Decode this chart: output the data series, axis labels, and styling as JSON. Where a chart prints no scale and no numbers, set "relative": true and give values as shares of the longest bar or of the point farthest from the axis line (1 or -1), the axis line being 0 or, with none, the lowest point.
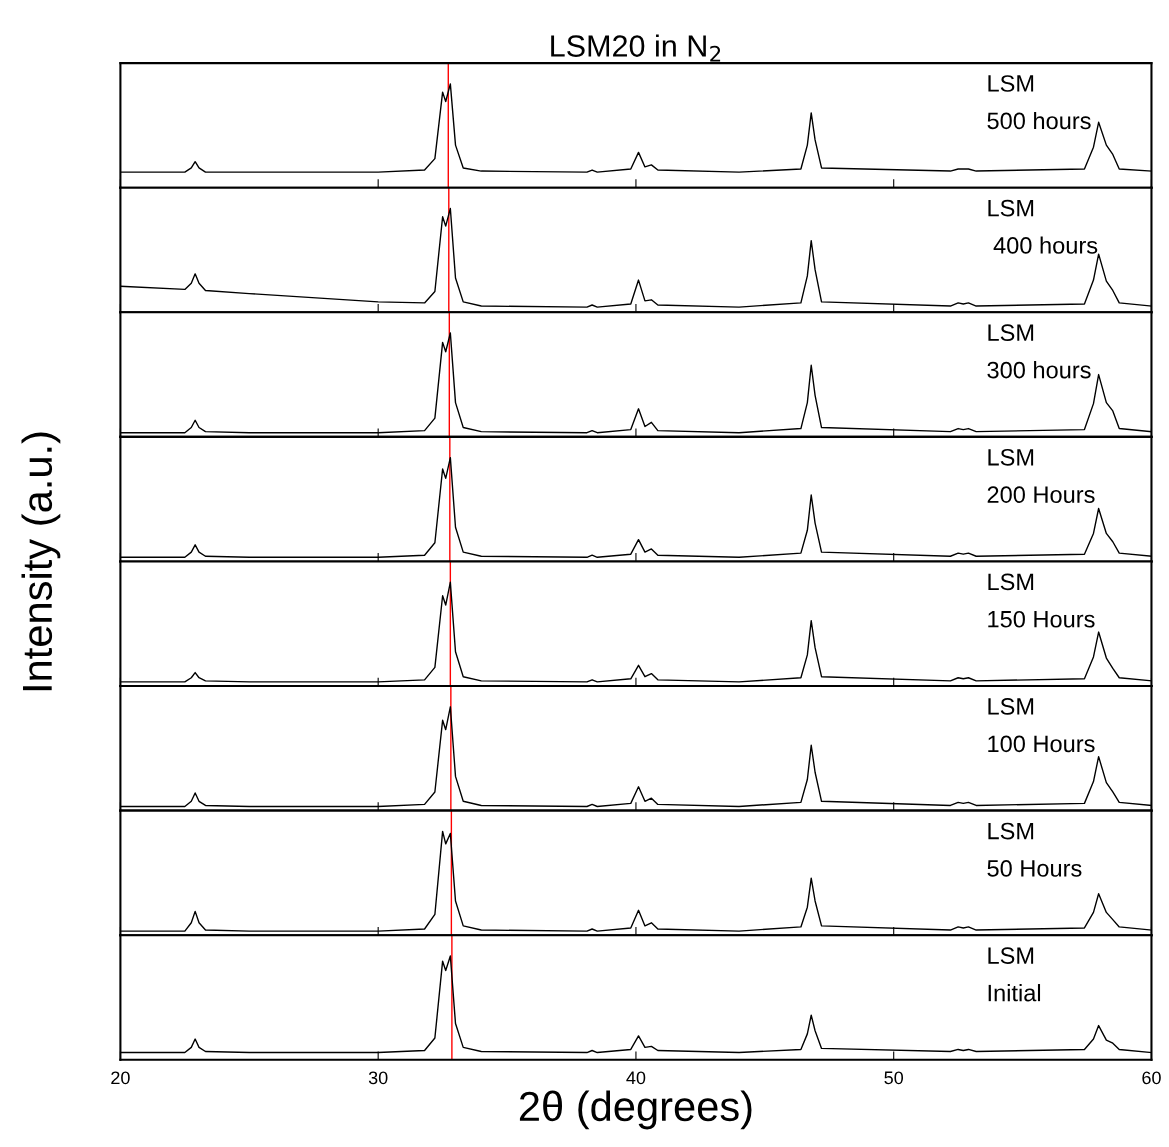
{
  "chart_data": [
    {
      "type": "line",
      "relative": true,
      "title": "LSM20 in N$_{2}$",
      "annotations": [
        "LSM",
        "500 hours"
      ],
      "xlim": [
        20,
        60
      ],
      "xticks": [
        20,
        30,
        40,
        50,
        60
      ],
      "tick_labels": false,
      "grid": false,
      "ref_lines": [
        {
          "axis": "x",
          "value": 32.72,
          "color": "#ff0000"
        }
      ],
      "x": [
        20,
        22.5,
        22.75,
        22.9,
        23.05,
        23.3,
        25,
        30,
        31.8,
        32.2,
        32.5,
        32.62,
        32.8,
        33.0,
        33.3,
        34,
        38.1,
        38.3,
        38.5,
        39.8,
        40.1,
        40.35,
        40.6,
        40.85,
        44,
        46.4,
        46.65,
        46.8,
        46.95,
        47.2,
        52.2,
        52.5,
        52.7,
        52.9,
        53.2,
        57.4,
        57.75,
        57.95,
        58.25,
        58.5,
        58.75,
        60
      ],
      "series": [
        {
          "color": "#000000",
          "values": [
            0.15,
            0.15,
            0.19,
            0.25,
            0.19,
            0.15,
            0.15,
            0.15,
            0.17,
            0.28,
            0.92,
            0.83,
            1,
            0.41,
            0.19,
            0.16,
            0.15,
            0.17,
            0.15,
            0.18,
            0.34,
            0.2,
            0.22,
            0.17,
            0.15,
            0.18,
            0.41,
            0.72,
            0.46,
            0.19,
            0.16,
            0.18,
            0.18,
            0.18,
            0.16,
            0.18,
            0.39,
            0.63,
            0.41,
            0.32,
            0.18,
            0.16
          ]
        }
      ]
    },
    {
      "type": "line",
      "relative": true,
      "annotations": [
        "LSM",
        " 400 hours"
      ],
      "xlim": [
        20,
        60
      ],
      "xticks": [
        20,
        30,
        40,
        50,
        60
      ],
      "tick_labels": false,
      "grid": false,
      "ref_lines": [
        {
          "axis": "x",
          "value": 32.74,
          "color": "#ff0000"
        }
      ],
      "x": [
        20,
        22.5,
        22.75,
        22.9,
        23.05,
        23.3,
        25,
        30,
        31.8,
        32.2,
        32.5,
        32.62,
        32.8,
        33.0,
        33.3,
        34,
        38.1,
        38.3,
        38.5,
        39.8,
        40.1,
        40.35,
        40.6,
        40.85,
        44,
        46.4,
        46.65,
        46.8,
        46.95,
        47.2,
        52.2,
        52.5,
        52.7,
        52.9,
        53.2,
        57.4,
        57.75,
        57.95,
        58.25,
        58.5,
        58.75,
        60
      ],
      "series": [
        {
          "color": "#000000",
          "values": [
            0.25,
            0.22,
            0.28,
            0.37,
            0.28,
            0.21,
            0.18,
            0.1,
            0.09,
            0.2,
            0.92,
            0.83,
            1,
            0.33,
            0.1,
            0.06,
            0.05,
            0.07,
            0.05,
            0.08,
            0.31,
            0.11,
            0.12,
            0.07,
            0.05,
            0.09,
            0.35,
            0.69,
            0.41,
            0.1,
            0.06,
            0.09,
            0.08,
            0.09,
            0.06,
            0.08,
            0.31,
            0.56,
            0.3,
            0.21,
            0.09,
            0.06
          ]
        }
      ]
    },
    {
      "type": "line",
      "relative": true,
      "annotations": [
        "LSM",
        "300 hours"
      ],
      "xlim": [
        20,
        60
      ],
      "xticks": [
        20,
        30,
        40,
        50,
        60
      ],
      "tick_labels": false,
      "grid": false,
      "ref_lines": [
        {
          "axis": "x",
          "value": 32.76,
          "color": "#ff0000"
        }
      ],
      "x": [
        20,
        22.5,
        22.75,
        22.9,
        23.05,
        23.3,
        25,
        30,
        31.8,
        32.2,
        32.5,
        32.62,
        32.8,
        33.0,
        33.3,
        34,
        38.1,
        38.3,
        38.5,
        39.8,
        40.1,
        40.35,
        40.6,
        40.85,
        44,
        46.4,
        46.65,
        46.8,
        46.95,
        47.2,
        52.2,
        52.5,
        52.7,
        52.9,
        53.2,
        57.4,
        57.75,
        57.95,
        58.25,
        58.5,
        58.75,
        60
      ],
      "series": [
        {
          "color": "#000000",
          "values": [
            0.04,
            0.04,
            0.09,
            0.16,
            0.09,
            0.05,
            0.04,
            0.04,
            0.06,
            0.18,
            0.91,
            0.82,
            1,
            0.33,
            0.09,
            0.05,
            0.04,
            0.06,
            0.04,
            0.07,
            0.27,
            0.1,
            0.14,
            0.06,
            0.04,
            0.08,
            0.33,
            0.69,
            0.4,
            0.09,
            0.05,
            0.08,
            0.07,
            0.08,
            0.05,
            0.07,
            0.32,
            0.6,
            0.33,
            0.25,
            0.08,
            0.05
          ]
        }
      ]
    },
    {
      "type": "line",
      "relative": true,
      "annotations": [
        "LSM",
        "200 Hours"
      ],
      "xlim": [
        20,
        60
      ],
      "xticks": [
        20,
        30,
        40,
        50,
        60
      ],
      "tick_labels": false,
      "grid": false,
      "ref_lines": [
        {
          "axis": "x",
          "value": 32.78,
          "color": "#ff0000"
        }
      ],
      "x": [
        20,
        22.5,
        22.75,
        22.9,
        23.05,
        23.3,
        25,
        30,
        31.8,
        32.2,
        32.5,
        32.62,
        32.8,
        33.0,
        33.3,
        34,
        38.1,
        38.3,
        38.5,
        39.8,
        40.1,
        40.35,
        40.6,
        40.85,
        44,
        46.4,
        46.65,
        46.8,
        46.95,
        47.2,
        52.2,
        52.5,
        52.7,
        52.9,
        53.2,
        57.4,
        57.75,
        57.95,
        58.25,
        58.5,
        58.75,
        60
      ],
      "series": [
        {
          "color": "#000000",
          "values": [
            0.04,
            0.04,
            0.09,
            0.16,
            0.09,
            0.05,
            0.04,
            0.04,
            0.06,
            0.18,
            0.89,
            0.8,
            1,
            0.33,
            0.09,
            0.05,
            0.04,
            0.06,
            0.04,
            0.07,
            0.21,
            0.09,
            0.12,
            0.06,
            0.04,
            0.08,
            0.3,
            0.64,
            0.37,
            0.09,
            0.05,
            0.08,
            0.07,
            0.08,
            0.05,
            0.07,
            0.27,
            0.51,
            0.27,
            0.19,
            0.08,
            0.05
          ]
        }
      ]
    },
    {
      "type": "line",
      "relative": true,
      "ylabel": "Intensity (a.u.)",
      "annotations": [
        "LSM",
        "150 Hours"
      ],
      "xlim": [
        20,
        60
      ],
      "xticks": [
        20,
        30,
        40,
        50,
        60
      ],
      "tick_labels": false,
      "grid": false,
      "ref_lines": [
        {
          "axis": "x",
          "value": 32.8,
          "color": "#ff0000"
        }
      ],
      "x": [
        20,
        22.5,
        22.75,
        22.9,
        23.05,
        23.3,
        25,
        30,
        31.8,
        32.2,
        32.5,
        32.62,
        32.8,
        33.0,
        33.3,
        34,
        38.1,
        38.3,
        38.5,
        39.8,
        40.1,
        40.35,
        40.6,
        40.85,
        44,
        46.4,
        46.65,
        46.8,
        46.95,
        47.2,
        52.2,
        52.5,
        52.7,
        52.9,
        53.2,
        57.4,
        57.75,
        57.95,
        58.25,
        58.5,
        58.75,
        60
      ],
      "series": [
        {
          "color": "#000000",
          "values": [
            0.04,
            0.04,
            0.08,
            0.13,
            0.08,
            0.05,
            0.04,
            0.04,
            0.06,
            0.18,
            0.87,
            0.78,
            1,
            0.33,
            0.09,
            0.05,
            0.04,
            0.06,
            0.04,
            0.07,
            0.2,
            0.09,
            0.12,
            0.06,
            0.04,
            0.08,
            0.3,
            0.63,
            0.37,
            0.09,
            0.05,
            0.08,
            0.07,
            0.08,
            0.05,
            0.07,
            0.28,
            0.52,
            0.27,
            0.17,
            0.08,
            0.05
          ]
        }
      ]
    },
    {
      "type": "line",
      "relative": true,
      "annotations": [
        "LSM",
        "100 Hours"
      ],
      "xlim": [
        20,
        60
      ],
      "xticks": [
        20,
        30,
        40,
        50,
        60
      ],
      "tick_labels": false,
      "grid": false,
      "ref_lines": [
        {
          "axis": "x",
          "value": 32.82,
          "color": "#ff0000"
        }
      ],
      "x": [
        20,
        22.5,
        22.75,
        22.9,
        23.05,
        23.3,
        25,
        30,
        31.8,
        32.2,
        32.5,
        32.62,
        32.8,
        33.0,
        33.3,
        34,
        38.1,
        38.3,
        38.5,
        39.8,
        40.1,
        40.35,
        40.6,
        40.85,
        44,
        46.4,
        46.65,
        46.8,
        46.95,
        47.2,
        52.2,
        52.5,
        52.7,
        52.9,
        53.2,
        57.4,
        57.75,
        57.95,
        58.25,
        58.5,
        58.75,
        60
      ],
      "series": [
        {
          "color": "#000000",
          "values": [
            0.04,
            0.04,
            0.09,
            0.17,
            0.09,
            0.05,
            0.04,
            0.04,
            0.06,
            0.18,
            0.87,
            0.78,
            1,
            0.33,
            0.09,
            0.05,
            0.04,
            0.06,
            0.04,
            0.07,
            0.23,
            0.09,
            0.12,
            0.06,
            0.04,
            0.08,
            0.3,
            0.63,
            0.37,
            0.09,
            0.05,
            0.08,
            0.07,
            0.08,
            0.05,
            0.07,
            0.28,
            0.52,
            0.27,
            0.18,
            0.08,
            0.05
          ]
        }
      ]
    },
    {
      "type": "line",
      "relative": true,
      "annotations": [
        "LSM",
        "50 Hours"
      ],
      "xlim": [
        20,
        60
      ],
      "xticks": [
        20,
        30,
        40,
        50,
        60
      ],
      "tick_labels": false,
      "grid": false,
      "ref_lines": [
        {
          "axis": "x",
          "value": 32.84,
          "color": "#ff0000"
        }
      ],
      "x": [
        20,
        22.5,
        22.75,
        22.9,
        23.05,
        23.3,
        25,
        30,
        31.8,
        32.2,
        32.5,
        32.62,
        32.8,
        33.0,
        33.3,
        34,
        38.1,
        38.3,
        38.5,
        39.8,
        40.1,
        40.35,
        40.6,
        40.85,
        44,
        46.4,
        46.65,
        46.8,
        46.95,
        47.2,
        52.2,
        52.5,
        52.7,
        52.9,
        53.2,
        57.4,
        57.75,
        57.95,
        58.25,
        58.5,
        58.75,
        60
      ],
      "series": [
        {
          "color": "#000000",
          "values": [
            0.04,
            0.04,
            0.12,
            0.23,
            0.12,
            0.05,
            0.04,
            0.04,
            0.06,
            0.2,
            1,
            0.88,
            0.98,
            0.33,
            0.09,
            0.05,
            0.04,
            0.06,
            0.04,
            0.07,
            0.24,
            0.09,
            0.12,
            0.06,
            0.04,
            0.08,
            0.27,
            0.55,
            0.33,
            0.09,
            0.05,
            0.08,
            0.07,
            0.08,
            0.05,
            0.07,
            0.22,
            0.4,
            0.22,
            0.15,
            0.08,
            0.05
          ]
        }
      ]
    },
    {
      "type": "line",
      "relative": true,
      "xlabel": "2θ (degrees)",
      "annotations": [
        "LSM",
        "Initial"
      ],
      "xlim": [
        20,
        60
      ],
      "xticks": [
        20,
        30,
        40,
        50,
        60
      ],
      "tick_labels": "x",
      "grid": false,
      "ref_lines": [
        {
          "axis": "x",
          "value": 32.86,
          "color": "#ff0000"
        }
      ],
      "x": [
        20,
        22.5,
        22.75,
        22.9,
        23.05,
        23.3,
        25,
        30,
        31.8,
        32.2,
        32.5,
        32.62,
        32.8,
        33.0,
        33.3,
        34,
        38.1,
        38.3,
        38.5,
        39.8,
        40.1,
        40.35,
        40.6,
        40.85,
        44,
        46.4,
        46.65,
        46.8,
        46.95,
        47.2,
        52.2,
        52.5,
        52.7,
        52.9,
        53.2,
        57.4,
        57.75,
        57.95,
        58.25,
        58.5,
        58.75,
        60
      ],
      "series": [
        {
          "color": "#000000",
          "values": [
            0.07,
            0.07,
            0.12,
            0.2,
            0.12,
            0.08,
            0.07,
            0.07,
            0.09,
            0.21,
            0.95,
            0.86,
            1,
            0.35,
            0.12,
            0.08,
            0.07,
            0.09,
            0.07,
            0.1,
            0.23,
            0.12,
            0.13,
            0.09,
            0.07,
            0.1,
            0.25,
            0.43,
            0.28,
            0.11,
            0.08,
            0.1,
            0.09,
            0.1,
            0.08,
            0.1,
            0.2,
            0.33,
            0.19,
            0.16,
            0.1,
            0.07
          ]
        }
      ]
    }
  ]
}
